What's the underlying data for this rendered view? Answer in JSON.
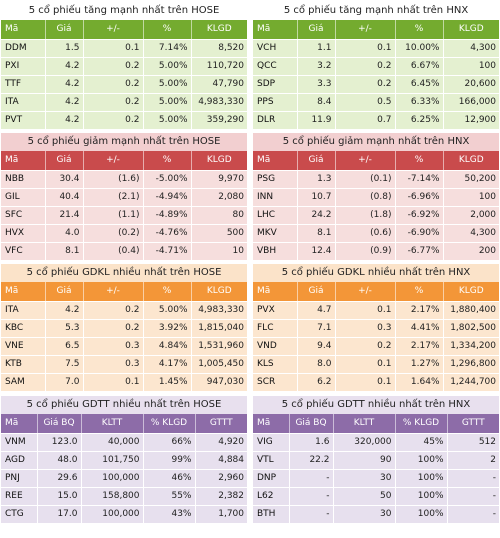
{
  "panels": [
    {
      "title": "5 cổ phiếu tăng mạnh nhất trên HOSE",
      "theme": "green",
      "headers": [
        "Mã",
        "Giá",
        "+/-",
        "%",
        "KLGD"
      ],
      "rows": [
        [
          "DDM",
          "1.5",
          "0.1",
          "7.14%",
          "8,520"
        ],
        [
          "PXI",
          "4.2",
          "0.2",
          "5.00%",
          "110,720"
        ],
        [
          "TTF",
          "4.2",
          "0.2",
          "5.00%",
          "47,790"
        ],
        [
          "ITA",
          "4.2",
          "0.2",
          "5.00%",
          "4,983,330"
        ],
        [
          "PVT",
          "4.2",
          "0.2",
          "5.00%",
          "359,290"
        ]
      ]
    },
    {
      "title": "5 cổ phiếu tăng mạnh nhất trên HNX",
      "theme": "green",
      "headers": [
        "Mã",
        "Giá",
        "+/-",
        "%",
        "KLGD"
      ],
      "rows": [
        [
          "VCH",
          "1.1",
          "0.1",
          "10.00%",
          "4,300"
        ],
        [
          "QCC",
          "3.2",
          "0.2",
          "6.67%",
          "100"
        ],
        [
          "SDP",
          "3.3",
          "0.2",
          "6.45%",
          "20,600"
        ],
        [
          "PPS",
          "8.4",
          "0.5",
          "6.33%",
          "166,000"
        ],
        [
          "DLR",
          "11.9",
          "0.7",
          "6.25%",
          "12,900"
        ]
      ]
    },
    {
      "title": "5 cổ phiếu giảm mạnh nhất trên HOSE",
      "theme": "red",
      "headers": [
        "Mã",
        "Giá",
        "+/-",
        "%",
        "KLGD"
      ],
      "rows": [
        [
          "NBB",
          "30.4",
          "(1.6)",
          "-5.00%",
          "9,970"
        ],
        [
          "GIL",
          "40.4",
          "(2.1)",
          "-4.94%",
          "2,080"
        ],
        [
          "SFC",
          "21.4",
          "(1.1)",
          "-4.89%",
          "80"
        ],
        [
          "HVX",
          "4.0",
          "(0.2)",
          "-4.76%",
          "500"
        ],
        [
          "VFC",
          "8.1",
          "(0.4)",
          "-4.71%",
          "10"
        ]
      ]
    },
    {
      "title": "5 cổ phiếu giảm mạnh nhất trên HNX",
      "theme": "red",
      "headers": [
        "Mã",
        "Giá",
        "+/-",
        "%",
        "KLGD"
      ],
      "rows": [
        [
          "PSG",
          "1.3",
          "(0.1)",
          "-7.14%",
          "50,200"
        ],
        [
          "INN",
          "10.7",
          "(0.8)",
          "-6.96%",
          "100"
        ],
        [
          "LHC",
          "24.2",
          "(1.8)",
          "-6.92%",
          "2,000"
        ],
        [
          "MKV",
          "8.1",
          "(0.6)",
          "-6.90%",
          "4,300"
        ],
        [
          "VBH",
          "12.4",
          "(0.9)",
          "-6.77%",
          "200"
        ]
      ]
    },
    {
      "title": "5 cổ phiếu GDKL nhiều nhất trên HOSE",
      "theme": "orange",
      "headers": [
        "Mã",
        "Giá",
        "+/-",
        "%",
        "KLGD"
      ],
      "rows": [
        [
          "ITA",
          "4.2",
          "0.2",
          "5.00%",
          "4,983,330"
        ],
        [
          "KBC",
          "5.3",
          "0.2",
          "3.92%",
          "1,815,040"
        ],
        [
          "VNE",
          "6.5",
          "0.3",
          "4.84%",
          "1,531,960"
        ],
        [
          "KTB",
          "7.5",
          "0.3",
          "4.17%",
          "1,005,450"
        ],
        [
          "SAM",
          "7.0",
          "0.1",
          "1.45%",
          "947,030"
        ]
      ]
    },
    {
      "title": "5 cổ phiếu GDKL nhiều nhất trên HNX",
      "theme": "orange",
      "headers": [
        "Mã",
        "Giá",
        "+/-",
        "%",
        "KLGD"
      ],
      "rows": [
        [
          "PVX",
          "4.7",
          "0.1",
          "2.17%",
          "1,880,400"
        ],
        [
          "FLC",
          "7.1",
          "0.3",
          "4.41%",
          "1,802,500"
        ],
        [
          "VND",
          "9.4",
          "0.2",
          "2.17%",
          "1,334,200"
        ],
        [
          "KLS",
          "8.0",
          "0.1",
          "1.27%",
          "1,296,800"
        ],
        [
          "SCR",
          "6.2",
          "0.1",
          "1.64%",
          "1,244,700"
        ]
      ]
    },
    {
      "title": "5 cổ phiếu GDTT nhiều nhất trên HOSE",
      "theme": "purple",
      "headers": [
        "Mã",
        "Giá BQ",
        "KLTT",
        "% KLGD",
        "GTTT"
      ],
      "rows": [
        [
          "VNM",
          "123.0",
          "40,000",
          "66%",
          "4,920"
        ],
        [
          "AGD",
          "48.0",
          "101,750",
          "99%",
          "4,884"
        ],
        [
          "PNJ",
          "29.6",
          "100,000",
          "46%",
          "2,960"
        ],
        [
          "REE",
          "15.0",
          "158,800",
          "55%",
          "2,382"
        ],
        [
          "CTG",
          "17.0",
          "100,000",
          "43%",
          "1,700"
        ]
      ]
    },
    {
      "title": "5 cổ phiếu GDTT nhiều nhất trên HNX",
      "theme": "purple",
      "headers": [
        "Mã",
        "Giá BQ",
        "KLTT",
        "% KLGD",
        "GTTT"
      ],
      "rows": [
        [
          "VIG",
          "1.6",
          "320,000",
          "45%",
          "512"
        ],
        [
          "VTL",
          "22.2",
          "90",
          "100%",
          "2"
        ],
        [
          "DNP",
          "-",
          "30",
          "100%",
          "-"
        ],
        [
          "L62",
          "-",
          "50",
          "100%",
          "-"
        ],
        [
          "BTH",
          "-",
          "30",
          "100%",
          "-"
        ]
      ]
    }
  ],
  "themes": {
    "green": {
      "title_bg": "#ffffff",
      "header_bg": "#74ab2f",
      "row_bg": "#e4f0d0"
    },
    "red": {
      "title_bg": "#f2cfd0",
      "header_bg": "#c94b4c",
      "row_bg": "#f6dedd"
    },
    "orange": {
      "title_bg": "#fbe3c9",
      "header_bg": "#f39638",
      "row_bg": "#fce6cf"
    },
    "purple": {
      "title_bg": "#e8e0ee",
      "header_bg": "#8d6ca8",
      "row_bg": "#e7e0ee"
    }
  }
}
